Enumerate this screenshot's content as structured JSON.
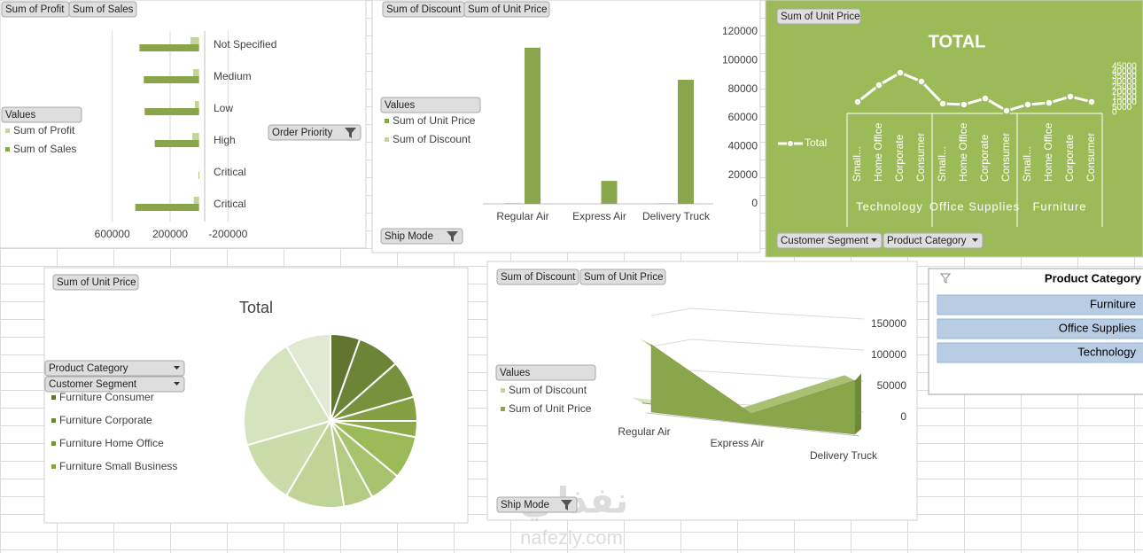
{
  "chart_data": [
    {
      "type": "bar",
      "orientation": "horizontal",
      "field_buttons": [
        "Sum of Profit",
        "Sum of Sales"
      ],
      "legend_title": "Values",
      "filter_button": "Order Priority",
      "categories": [
        "Not Specified",
        "Medium",
        "Low",
        "High",
        "Critical",
        "Critical"
      ],
      "series": [
        {
          "name": "Sum of Profit",
          "color": "#c3d59a",
          "values": [
            59000,
            41000,
            29000,
            47000,
            1000,
            36000
          ]
        },
        {
          "name": "Sum of Sales",
          "color": "#8aa64a",
          "values": [
            412000,
            382000,
            376000,
            306000,
            4000,
            441000
          ]
        }
      ],
      "xlim": [
        800000,
        -400000
      ],
      "xticks": [
        600000,
        200000,
        -200000
      ],
      "grid": true
    },
    {
      "type": "bar",
      "field_buttons": [
        "Sum of Discount",
        "Sum of Unit Price"
      ],
      "legend_title": "Values",
      "filter_button": "Ship Mode",
      "categories": [
        "Regular Air",
        "Express Air",
        "Delivery Truck"
      ],
      "series": [
        {
          "name": "Sum of Discount",
          "color": "#c3d59a",
          "values": [
            700,
            300,
            600
          ]
        },
        {
          "name": "Sum of Unit Price",
          "color": "#8aa64a",
          "values": [
            109000,
            16000,
            86600
          ]
        }
      ],
      "ylim": [
        0,
        120000
      ],
      "yticks": [
        0,
        20000,
        40000,
        60000,
        80000,
        100000,
        120000
      ],
      "grid": false
    },
    {
      "type": "line",
      "title": "TOTAL",
      "field_buttons": [
        "Sum of Unit Price"
      ],
      "filter_buttons": [
        "Customer Segment",
        "Product Category"
      ],
      "categories": [
        "Small...",
        "Home Office",
        "Corporate",
        "Consumer",
        "Small...",
        "Home Office",
        "Corporate",
        "Consumer",
        "Small...",
        "Home Office",
        "Corporate",
        "Consumer"
      ],
      "category_groups": [
        "Technology",
        "Office Supplies",
        "Furniture"
      ],
      "series": [
        {
          "name": "Total",
          "color": "#ffffff",
          "values": [
            10400,
            26800,
            38900,
            30300,
            8700,
            7800,
            13800,
            1700,
            7800,
            9500,
            15600,
            10400
          ]
        }
      ],
      "ylim": [
        0,
        45000
      ],
      "yticks": [
        0,
        5000,
        10000,
        15000,
        20000,
        25000,
        30000,
        35000,
        40000,
        45000
      ]
    },
    {
      "type": "pie",
      "title": "Total",
      "field_buttons": [
        "Sum of Unit Price"
      ],
      "filter_buttons": [
        "Product Category",
        "Customer Segment"
      ],
      "categories": [
        "Furniture Consumer",
        "Furniture Corporate",
        "Furniture Home Office",
        "Furniture Small Business",
        null,
        null,
        null,
        null,
        null,
        null,
        null,
        null
      ],
      "values": [
        5.5,
        8,
        7,
        4.5,
        3,
        8,
        6,
        5.5,
        11,
        12,
        21,
        8.5
      ],
      "colors": [
        "#5f7530",
        "#6b8436",
        "#76923c",
        "#83a043",
        "#8eaa4d",
        "#9bbb59",
        "#a6c36d",
        "#b3cb82",
        "#bfd496",
        "#cbdcab",
        "#d6e3bf",
        "#e1e9d2"
      ]
    },
    {
      "type": "area",
      "field_buttons": [
        "Sum of Discount",
        "Sum of Unit Price"
      ],
      "legend_title": "Values",
      "filter_button": "Ship Mode",
      "categories": [
        "Regular Air",
        "Express Air",
        "Delivery Truck"
      ],
      "series": [
        {
          "name": "Sum of Discount",
          "color": "#c3d59a",
          "values": [
            700,
            300,
            600
          ]
        },
        {
          "name": "Sum of Unit Price",
          "color": "#8aa64a",
          "values": [
            109000,
            16000,
            86600
          ]
        }
      ],
      "ylim": [
        0,
        150000
      ],
      "yticks": [
        0,
        50000,
        100000,
        150000
      ],
      "grid": true
    }
  ],
  "slicer": {
    "title": "Product Category",
    "items": [
      "Furniture",
      "Office Supplies",
      "Technology"
    ]
  },
  "watermark": {
    "arabic": "نفذلي",
    "latin": "nafezly.com"
  }
}
